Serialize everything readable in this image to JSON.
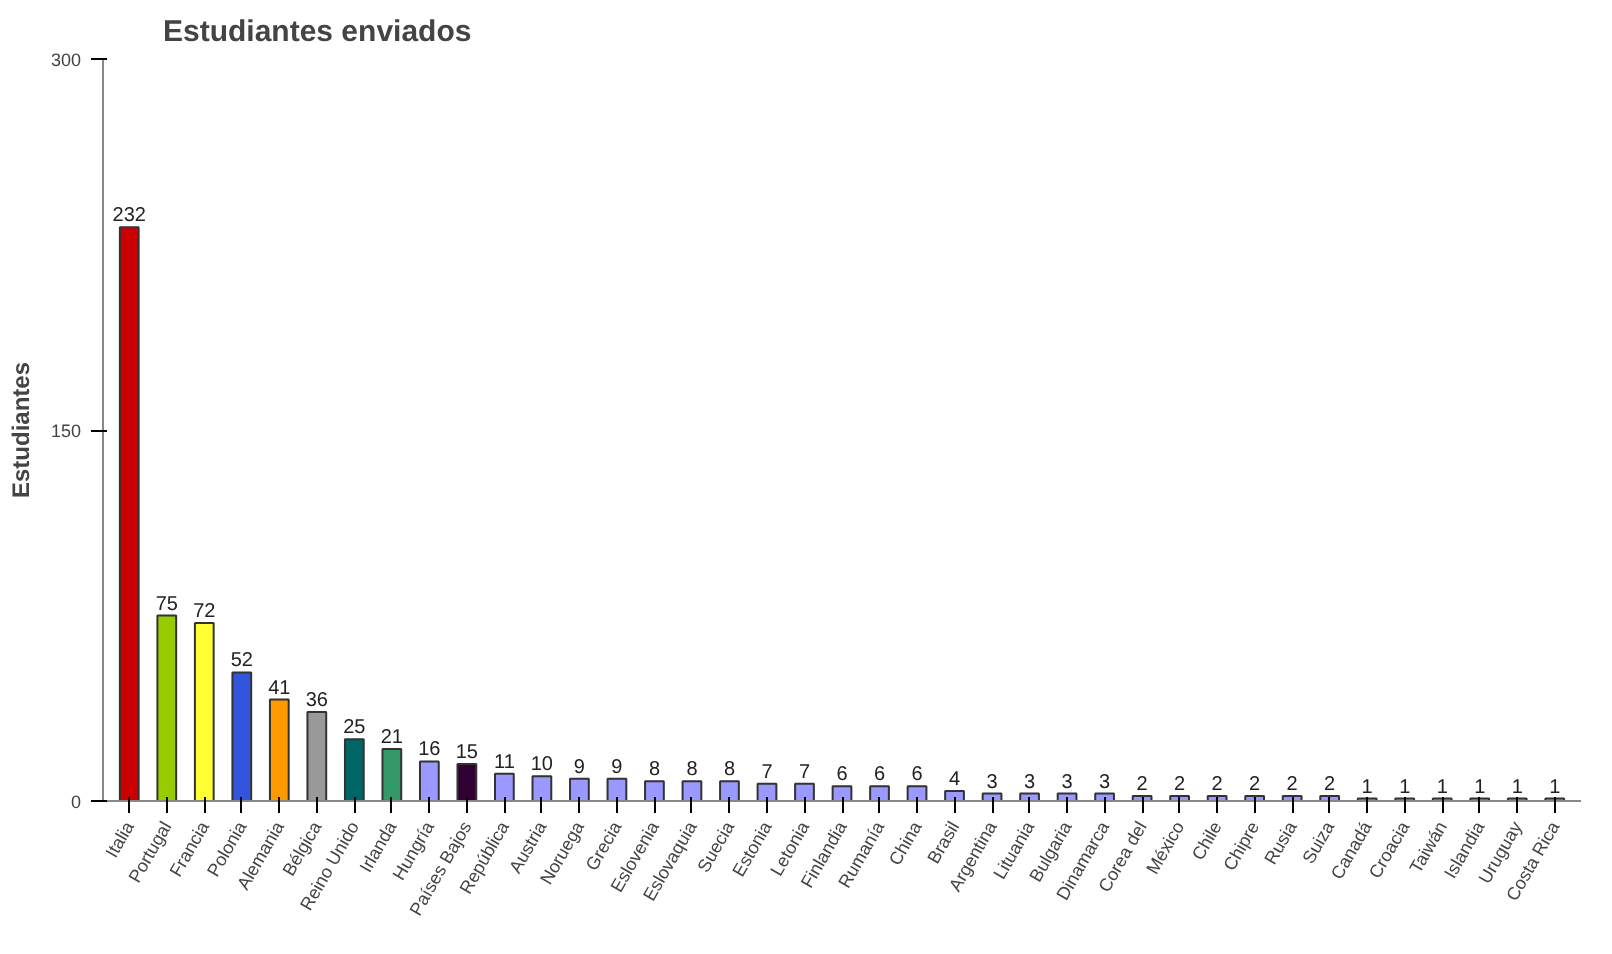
{
  "chart_data": {
    "type": "bar",
    "title": "Estudiantes enviados",
    "ylabel": "Estudiantes",
    "categories": [
      "Italia",
      "Portugal",
      "Francia",
      "Polonia",
      "Alemania",
      "Bélgica",
      "Reino Unido",
      "Irlanda",
      "Hungría",
      "Países Bajos",
      "República",
      "Austria",
      "Noruega",
      "Grecia",
      "Eslovenia",
      "Eslovaquia",
      "Suecia",
      "Estonia",
      "Letonia",
      "Finlandia",
      "Rumanía",
      "China",
      "Brasil",
      "Argentina",
      "Lituania",
      "Bulgaria",
      "Dinamarca",
      "Corea del",
      "México",
      "Chile",
      "Chipre",
      "Rusia",
      "Suiza",
      "Canadá",
      "Croacia",
      "Taiwán",
      "Islandia",
      "Uruguay",
      "Costa Rica"
    ],
    "values": [
      232,
      75,
      72,
      52,
      41,
      36,
      25,
      21,
      16,
      15,
      11,
      10,
      9,
      9,
      8,
      8,
      8,
      7,
      7,
      6,
      6,
      6,
      4,
      3,
      3,
      3,
      3,
      2,
      2,
      2,
      2,
      2,
      2,
      1,
      1,
      1,
      1,
      1,
      1
    ],
    "colors": [
      "#cc0000",
      "#99cc00",
      "#ffff33",
      "#3355dd",
      "#ff9900",
      "#999999",
      "#006666",
      "#339966",
      "#9999ff",
      "#330033",
      "#9999ff",
      "#9999ff",
      "#9999ff",
      "#9999ff",
      "#9999ff",
      "#9999ff",
      "#9999ff",
      "#9999ff",
      "#9999ff",
      "#9999ff",
      "#9999ff",
      "#9999ff",
      "#9999ff",
      "#9999ff",
      "#9999ff",
      "#9999ff",
      "#9999ff",
      "#9999ff",
      "#9999ff",
      "#9999ff",
      "#9999ff",
      "#9999ff",
      "#9999ff",
      "#9999ff",
      "#9999ff",
      "#9999ff",
      "#9999ff",
      "#9999ff",
      "#9999ff"
    ],
    "ylim": [
      0,
      300
    ],
    "yticks": [
      0,
      150,
      300
    ],
    "data_labels": true,
    "grid": false
  }
}
